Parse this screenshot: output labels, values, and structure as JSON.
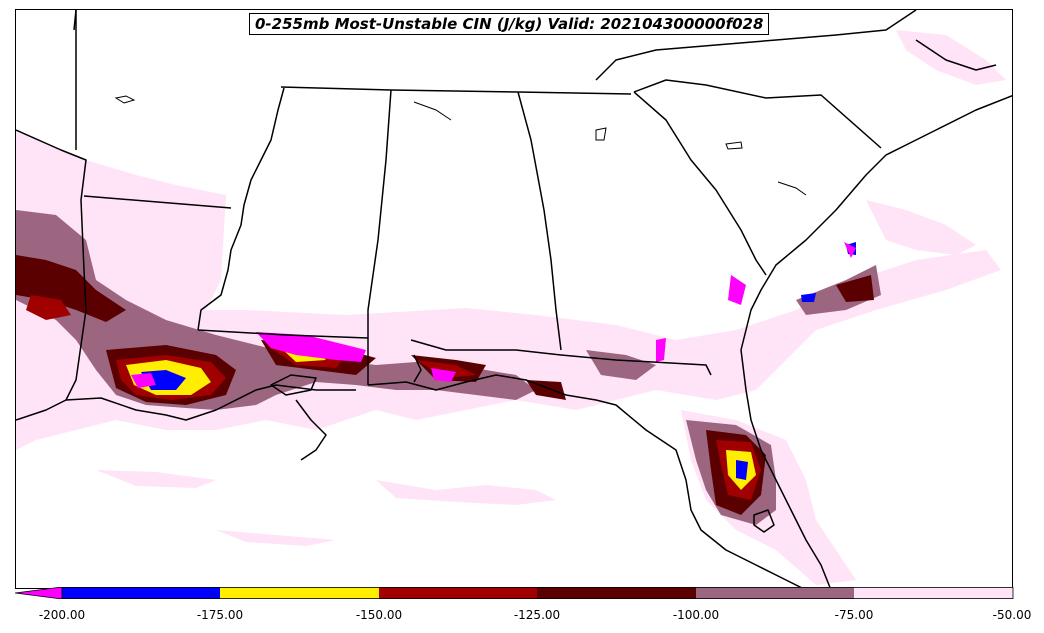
{
  "title": "0-255mb Most-Unstable CIN (J/kg) Valid: 202104300000f028",
  "colorbar": {
    "ticks": [
      "-200.00",
      "-175.00",
      "-150.00",
      "-125.00",
      "-100.00",
      "-75.00",
      "-50.00"
    ],
    "bins": [
      {
        "range": [
          -250,
          -200
        ],
        "color": "#ff00ff",
        "extend": "min"
      },
      {
        "range": [
          -200,
          -175
        ],
        "color": "#0000ff"
      },
      {
        "range": [
          -175,
          -150
        ],
        "color": "#ffee00"
      },
      {
        "range": [
          -150,
          -125
        ],
        "color": "#a00000"
      },
      {
        "range": [
          -125,
          -100
        ],
        "color": "#5a0000"
      },
      {
        "range": [
          -100,
          -75
        ],
        "color": "#9c6680"
      },
      {
        "range": [
          -75,
          -50
        ],
        "color": "#ffe3f7"
      }
    ]
  }
}
